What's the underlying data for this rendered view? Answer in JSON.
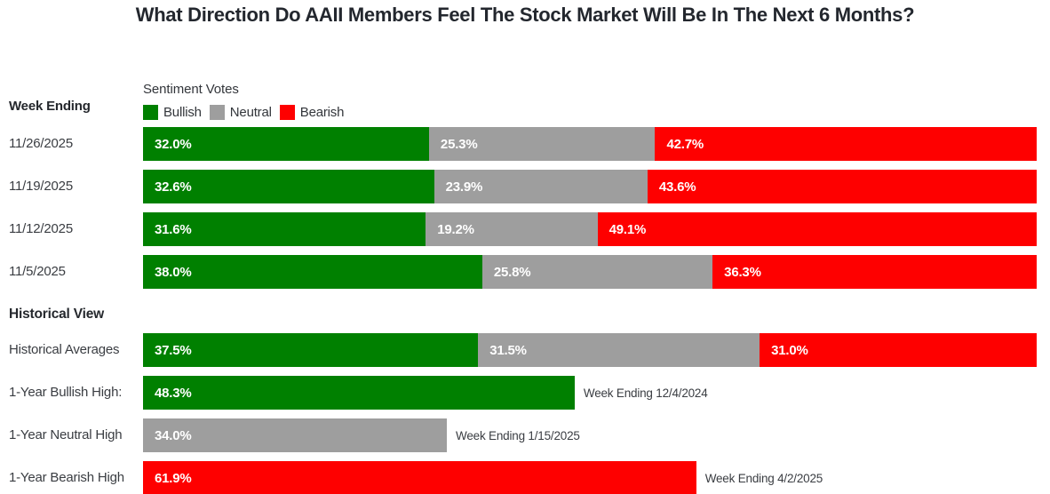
{
  "title": "What Direction Do AAII Members Feel The Stock Market Will Be In The Next 6 Months?",
  "labels": {
    "week_ending_header": "Week Ending",
    "historical_heading": "Historical View"
  },
  "legend": {
    "title": "Sentiment Votes",
    "items": [
      {
        "label": "Bullish",
        "color": "#008000"
      },
      {
        "label": "Neutral",
        "color": "#9e9e9e"
      },
      {
        "label": "Bearish",
        "color": "#fe0000"
      }
    ]
  },
  "colors": {
    "bullish": "#008000",
    "neutral": "#9e9e9e",
    "bearish": "#fe0000",
    "bar_text": "#ffffff"
  },
  "chart_data": {
    "type": "bar",
    "orientation": "horizontal",
    "stacked": true,
    "unit": "percent",
    "xlim": [
      0,
      100
    ],
    "grid": false,
    "legend_position": "top",
    "series_names": [
      "Bullish",
      "Neutral",
      "Bearish"
    ],
    "week_rows": [
      {
        "label": "11/26/2025",
        "bullish": 32.0,
        "neutral": 25.3,
        "bearish": 42.7
      },
      {
        "label": "11/19/2025",
        "bullish": 32.6,
        "neutral": 23.9,
        "bearish": 43.6
      },
      {
        "label": "11/12/2025",
        "bullish": 31.6,
        "neutral": 19.2,
        "bearish": 49.1
      },
      {
        "label": "11/5/2025",
        "bullish": 38.0,
        "neutral": 25.8,
        "bearish": 36.3
      }
    ],
    "historical_rows": [
      {
        "label": "Historical Averages",
        "bullish": 37.5,
        "neutral": 31.5,
        "bearish": 31.0
      }
    ],
    "single_rows": [
      {
        "label": "1-Year Bullish High:",
        "series": "Bullish",
        "value": 48.3,
        "annotation": "Week Ending 12/4/2024"
      },
      {
        "label": "1-Year Neutral High",
        "series": "Neutral",
        "value": 34.0,
        "annotation": "Week Ending 1/15/2025"
      },
      {
        "label": "1-Year Bearish High",
        "series": "Bearish",
        "value": 61.9,
        "annotation": "Week Ending 4/2/2025"
      }
    ]
  }
}
